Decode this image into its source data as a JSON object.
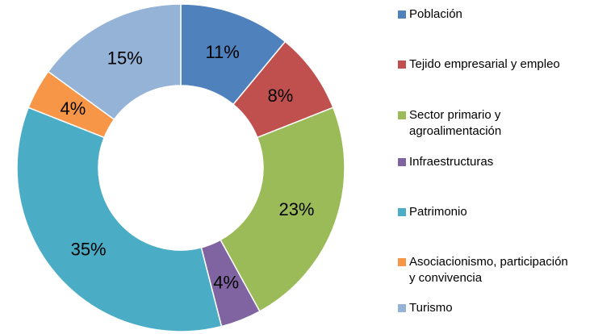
{
  "chart_data": {
    "type": "donut",
    "categories": [
      "Población",
      "Tejido empresarial y empleo",
      "Sector primario y\nagroalimentación",
      "Infraestructuras",
      "Patrimonio",
      "Asociacionismo, participación\ny convivencia",
      "Turismo"
    ],
    "values": [
      11,
      8,
      23,
      4,
      35,
      4,
      15
    ],
    "value_labels": [
      "11%",
      "8%",
      "23%",
      "4%",
      "35%",
      "4%",
      "15%"
    ],
    "colors": [
      "#4f81bd",
      "#c0504d",
      "#9bbb59",
      "#8064a2",
      "#4bacc6",
      "#f79646",
      "#95b3d7"
    ],
    "legend": "right"
  }
}
